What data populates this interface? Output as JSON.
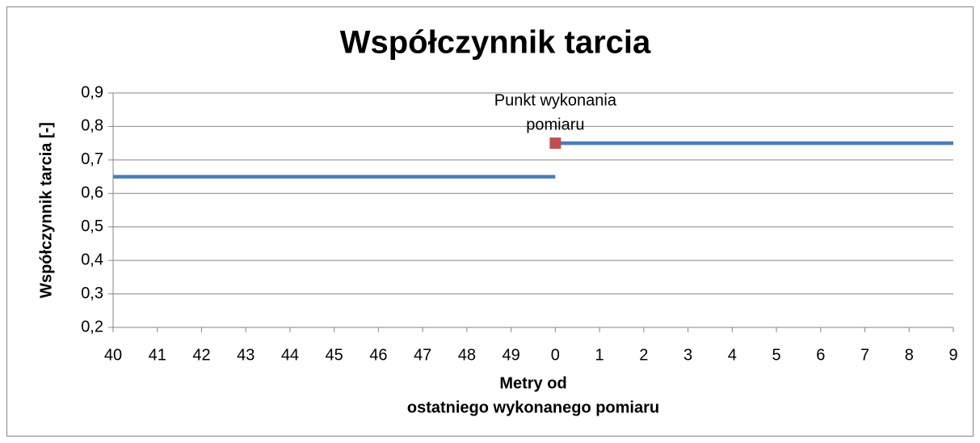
{
  "chart_data": {
    "type": "line",
    "title": "Współczynnik tarcia",
    "y_label": "Współczynnik tarcia [-]",
    "x_label": [
      "Metry od",
      "ostatniego wykonanego pomiaru"
    ],
    "categories": [
      "40",
      "41",
      "42",
      "43",
      "44",
      "45",
      "46",
      "47",
      "48",
      "49",
      "0",
      "1",
      "2",
      "3",
      "4",
      "5",
      "6",
      "7",
      "8",
      "9"
    ],
    "series": [
      {
        "color": "#4a7ebb",
        "values": [
          0.65,
          0.65,
          0.65,
          0.65,
          0.65,
          0.65,
          0.65,
          0.65,
          0.65,
          0.65,
          0.65,
          null,
          null,
          null,
          null,
          null,
          null,
          null,
          null,
          null
        ]
      },
      {
        "color": "#4a7ebb",
        "values": [
          null,
          null,
          null,
          null,
          null,
          null,
          null,
          null,
          null,
          null,
          0.75,
          0.75,
          0.75,
          0.75,
          0.75,
          0.75,
          0.75,
          0.75,
          0.75,
          0.75
        ]
      },
      {
        "color": "#c0504d",
        "marker": "square",
        "values": [
          null,
          null,
          null,
          null,
          null,
          null,
          null,
          null,
          null,
          null,
          0.75,
          null,
          null,
          null,
          null,
          null,
          null,
          null,
          null,
          null
        ]
      }
    ],
    "annotation": {
      "text": [
        "Punkt wykonania",
        "pomiaru"
      ],
      "series": 2,
      "index": 10
    },
    "ylim": [
      0.2,
      0.9
    ],
    "yticks": [
      {
        "value": 0.2,
        "label": "0,2"
      },
      {
        "value": 0.3,
        "label": "0,3"
      },
      {
        "value": 0.4,
        "label": "0,4"
      },
      {
        "value": 0.5,
        "label": "0,5"
      },
      {
        "value": 0.6,
        "label": "0,6"
      },
      {
        "value": 0.7,
        "label": "0,7"
      },
      {
        "value": 0.8,
        "label": "0,8"
      },
      {
        "value": 0.9,
        "label": "0,9"
      }
    ],
    "grid": true
  }
}
